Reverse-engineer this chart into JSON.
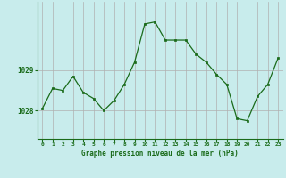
{
  "x": [
    0,
    1,
    2,
    3,
    4,
    5,
    6,
    7,
    8,
    9,
    10,
    11,
    12,
    13,
    14,
    15,
    16,
    17,
    18,
    19,
    20,
    21,
    22,
    23
  ],
  "y": [
    1028.05,
    1028.55,
    1028.5,
    1028.85,
    1028.45,
    1028.3,
    1028.0,
    1028.25,
    1028.65,
    1029.2,
    1030.15,
    1030.2,
    1029.75,
    1029.75,
    1029.75,
    1029.4,
    1029.2,
    1028.9,
    1028.65,
    1027.8,
    1027.75,
    1028.35,
    1028.65,
    1029.3
  ],
  "line_color": "#1a6b1a",
  "marker_color": "#1a6b1a",
  "bg_color": "#c8ecec",
  "plot_bg": "#c8ecec",
  "grid_color": "#b0b0b0",
  "xlabel": "Graphe pression niveau de la mer (hPa)",
  "xlabel_color": "#1a6b1a",
  "tick_color": "#1a6b1a",
  "ytick_labels": [
    "1028",
    "1029"
  ],
  "ytick_values": [
    1028,
    1029
  ],
  "ylim": [
    1027.3,
    1030.7
  ],
  "xlim": [
    -0.5,
    23.5
  ],
  "figsize": [
    3.2,
    2.0
  ],
  "dpi": 100
}
